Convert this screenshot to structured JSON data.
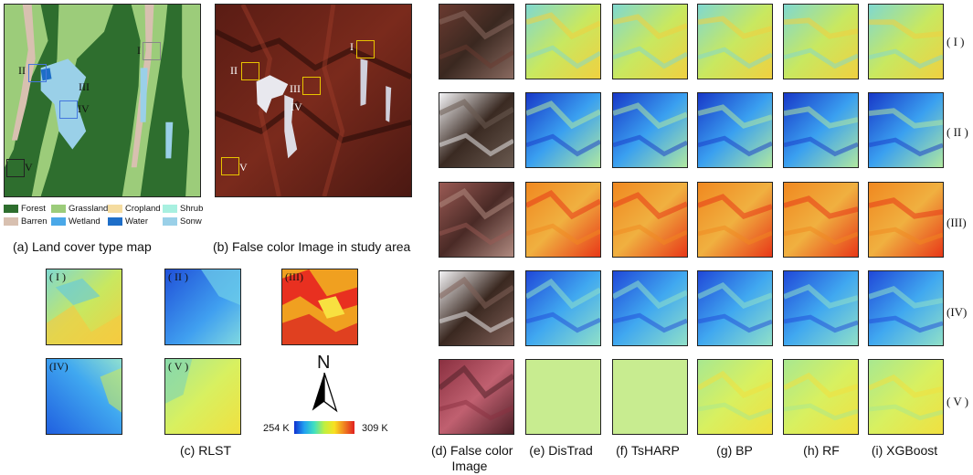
{
  "captions": {
    "a": "(a) Land cover type map",
    "b": "(b) False color Image in study area",
    "c": "(c) RLST",
    "d_line1": "(d) False color",
    "d_line2": "Image",
    "e": "(e) DisTrad",
    "f": "(f) TsHARP",
    "g": "(g) BP",
    "h": "(h) RF",
    "i": "(i) XGBoost"
  },
  "legend": [
    {
      "label": "Forest",
      "color": "#2e6e2e"
    },
    {
      "label": "Grassland",
      "color": "#9ccc7a"
    },
    {
      "label": "Cropland",
      "color": "#f5dca0"
    },
    {
      "label": "Shrub",
      "color": "#a8f0e0"
    },
    {
      "label": "Barren",
      "color": "#d8c0b0"
    },
    {
      "label": "Wetland",
      "color": "#4aa8e8"
    },
    {
      "label": "Water",
      "color": "#1e6ec8"
    },
    {
      "label": "Sonw",
      "color": "#9ad0e8"
    }
  ],
  "region_labels": [
    "I",
    "II",
    "III",
    "IV",
    "V"
  ],
  "row_labels": [
    "( I )",
    "( II )",
    "(III)",
    "(IV)",
    "( V )"
  ],
  "rlst_labels": [
    "( I )",
    "( II )",
    "(III)",
    "(IV)",
    "( V )"
  ],
  "colorbar": {
    "min_label": "254 K",
    "max_label": "309 K"
  },
  "north": "N",
  "colors": {
    "frame": "#222222"
  }
}
